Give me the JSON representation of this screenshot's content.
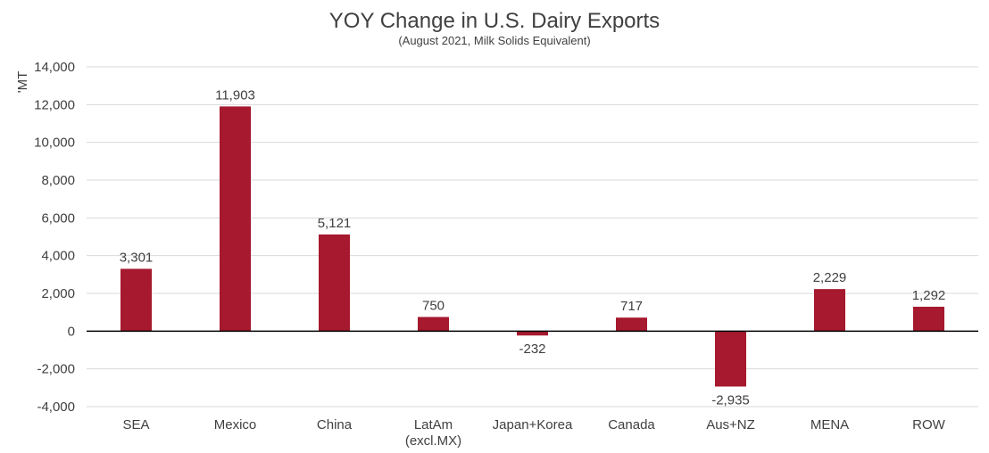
{
  "chart_data": {
    "type": "bar",
    "title": "YOY Change in U.S. Dairy Exports",
    "subtitle": "(August 2021, Milk Solids Equivalent)",
    "ylabel": "'MT",
    "xlabel": "",
    "ylim": [
      -4000,
      14000
    ],
    "yticks": [
      14000,
      12000,
      10000,
      8000,
      6000,
      4000,
      2000,
      0,
      -2000,
      -4000
    ],
    "ytick_labels": [
      "14,000",
      "12,000",
      "10,000",
      "8,000",
      "6,000",
      "4,000",
      "2,000",
      "0",
      "-2,000",
      "-4,000"
    ],
    "categories": [
      [
        "SEA"
      ],
      [
        "Mexico"
      ],
      [
        "China"
      ],
      [
        "LatAm",
        "(excl.MX)"
      ],
      [
        "Japan+Korea"
      ],
      [
        "Canada"
      ],
      [
        "Aus+NZ"
      ],
      [
        "MENA"
      ],
      [
        "ROW"
      ]
    ],
    "values": [
      3301,
      11903,
      5121,
      750,
      -232,
      717,
      -2935,
      2229,
      1292
    ],
    "data_labels": [
      "3,301",
      "11,903",
      "5,121",
      "750",
      "-232",
      "717",
      "-2,935",
      "2,229",
      "1,292"
    ],
    "bar_color": "#a6192e",
    "grid": true,
    "legend": "none"
  }
}
